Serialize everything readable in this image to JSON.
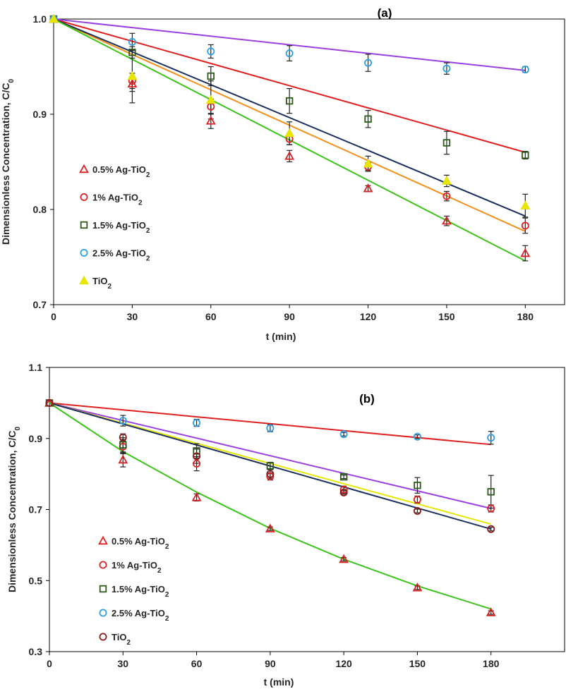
{
  "figure": {
    "panels_count": 2
  },
  "chart_data": [
    {
      "type": "scatter",
      "panel_label": "(a)",
      "xlabel": "t (min)",
      "ylabel": "Dimensionless Concentration, C/C",
      "ylabel_sub": "0",
      "xlim": [
        0,
        195
      ],
      "ylim": [
        0.7,
        1.0
      ],
      "xticks": [
        0,
        30,
        60,
        90,
        120,
        150,
        180
      ],
      "yticks": [
        0.7,
        0.8,
        0.9,
        1.0
      ],
      "ytick_labels": [
        "0.7",
        "0.8",
        "0.9",
        "1.0"
      ],
      "grid": false,
      "legend_position": "middle-left",
      "series": [
        {
          "name": "0.5% Ag-TiO",
          "sub": "2",
          "marker": "triangle",
          "color": "#e02020",
          "x": [
            0,
            30,
            60,
            90,
            120,
            150,
            180
          ],
          "values": [
            1.0,
            0.932,
            0.893,
            0.856,
            0.822,
            0.788,
            0.754
          ],
          "errors": [
            0,
            0.008,
            0.008,
            0.006,
            0.003,
            0.005,
            0.008
          ]
        },
        {
          "name": "1% Ag-TiO",
          "sub": "2",
          "marker": "circle",
          "color": "#e02020",
          "x": [
            0,
            30,
            60,
            90,
            120,
            150,
            180
          ],
          "values": [
            1.0,
            0.935,
            0.908,
            0.874,
            0.845,
            0.814,
            0.783
          ],
          "errors": [
            0,
            0.008,
            0.008,
            0.006,
            0.004,
            0.005,
            0.008
          ]
        },
        {
          "name": "1.5% Ag-TiO",
          "sub": "2",
          "marker": "square",
          "color": "#2d5a1b",
          "x": [
            0,
            30,
            60,
            90,
            120,
            150,
            180
          ],
          "values": [
            1.0,
            0.965,
            0.94,
            0.914,
            0.895,
            0.87,
            0.857
          ],
          "errors": [
            0,
            0.006,
            0.01,
            0.013,
            0.009,
            0.012,
            0.004
          ]
        },
        {
          "name": "2.5% Ag-TiO",
          "sub": "2",
          "marker": "circle",
          "color": "#2e9fe0",
          "x": [
            0,
            30,
            60,
            90,
            120,
            150,
            180
          ],
          "values": [
            1.0,
            0.976,
            0.966,
            0.964,
            0.954,
            0.948,
            0.947
          ],
          "errors": [
            0,
            0.009,
            0.007,
            0.008,
            0.009,
            0.006,
            0.003
          ]
        },
        {
          "name": "TiO",
          "sub": "2",
          "marker": "triangle",
          "color": "#e6e600",
          "x": [
            0,
            30,
            60,
            90,
            120,
            150,
            180
          ],
          "values": [
            1.0,
            0.94,
            0.915,
            0.88,
            0.848,
            0.83,
            0.804
          ],
          "errors": [
            0,
            0.028,
            0.02,
            0.012,
            0.008,
            0.006,
            0.012
          ]
        }
      ],
      "fit_lines": [
        {
          "color": "#e02020",
          "x": [
            0,
            180
          ],
          "values": [
            1.0,
            0.86
          ]
        },
        {
          "color": "#f5901e",
          "x": [
            0,
            180
          ],
          "values": [
            1.0,
            0.777
          ]
        },
        {
          "color": "#1a2f5e",
          "x": [
            0,
            180
          ],
          "values": [
            1.0,
            0.793
          ]
        },
        {
          "color": "#9b40e0",
          "x": [
            0,
            180
          ],
          "values": [
            1.0,
            0.946
          ]
        },
        {
          "color": "#3cc31c",
          "x": [
            0,
            180
          ],
          "values": [
            1.0,
            0.746
          ]
        }
      ]
    },
    {
      "type": "scatter",
      "panel_label": "(b)",
      "xlabel": "t (min)",
      "ylabel": "Dimensionless Concentration, C/C",
      "ylabel_sub": "0",
      "xlim": [
        0,
        210
      ],
      "ylim": [
        0.3,
        1.1
      ],
      "xticks": [
        0,
        30,
        60,
        90,
        120,
        150,
        180
      ],
      "yticks": [
        0.3,
        0.5,
        0.7,
        0.9,
        1.1
      ],
      "ytick_labels": [
        "0.3",
        "0.5",
        "0.7",
        "0.9",
        "1.1"
      ],
      "grid": false,
      "legend_position": "bottom-left",
      "series": [
        {
          "name": "0.5% Ag-TiO",
          "sub": "2",
          "marker": "triangle",
          "color": "#e02020",
          "x": [
            0,
            30,
            60,
            90,
            120,
            150,
            180
          ],
          "values": [
            1.0,
            0.84,
            0.734,
            0.646,
            0.56,
            0.48,
            0.41
          ],
          "errors": [
            0,
            0.02,
            0.01,
            0.005,
            0.005,
            0.005,
            0.005
          ]
        },
        {
          "name": "1% Ag-TiO",
          "sub": "2",
          "marker": "circle",
          "color": "#e02020",
          "x": [
            0,
            30,
            60,
            90,
            120,
            150,
            180
          ],
          "values": [
            1.0,
            0.877,
            0.829,
            0.793,
            0.756,
            0.728,
            0.703
          ],
          "errors": [
            0,
            0.02,
            0.02,
            0.01,
            0.01,
            0.01,
            0.01
          ]
        },
        {
          "name": "1.5% Ag-TiO",
          "sub": "2",
          "marker": "square",
          "color": "#2d5a1b",
          "x": [
            0,
            30,
            60,
            90,
            120,
            150,
            180
          ],
          "values": [
            1.0,
            0.882,
            0.865,
            0.823,
            0.792,
            0.768,
            0.75
          ],
          "errors": [
            0,
            0.02,
            0.02,
            0.01,
            0.005,
            0.022,
            0.046
          ]
        },
        {
          "name": "2.5% Ag-TiO",
          "sub": "2",
          "marker": "circle",
          "color": "#2e9fe0",
          "x": [
            0,
            30,
            60,
            90,
            120,
            150,
            180
          ],
          "values": [
            1.0,
            0.95,
            0.944,
            0.929,
            0.912,
            0.905,
            0.902
          ],
          "errors": [
            0,
            0.015,
            0.01,
            0.01,
            0.005,
            0.005,
            0.018
          ]
        },
        {
          "name": "TiO",
          "sub": "2",
          "marker": "circle",
          "color": "#8b1a1a",
          "x": [
            0,
            30,
            60,
            90,
            120,
            150,
            180
          ],
          "values": [
            1.0,
            0.903,
            0.85,
            0.8,
            0.748,
            0.696,
            0.645
          ],
          "errors": [
            0,
            0.01,
            0.02,
            0.012,
            0.005,
            0.005,
            0.005
          ]
        }
      ],
      "fit_lines": [
        {
          "color": "#e02020",
          "x": [
            0,
            180
          ],
          "values": [
            1.0,
            0.883
          ]
        },
        {
          "color": "#9b40e0",
          "x": [
            0,
            180
          ],
          "values": [
            1.0,
            0.703
          ]
        },
        {
          "color": "#e6e600",
          "x": [
            0,
            180
          ],
          "values": [
            1.0,
            0.659
          ]
        },
        {
          "color": "#1a2f5e",
          "x": [
            0,
            180
          ],
          "values": [
            1.0,
            0.645
          ]
        },
        {
          "color": "#3cc31c",
          "x": [
            0,
            30,
            60,
            90,
            120,
            150,
            180
          ],
          "values": [
            1.0,
            0.863,
            0.749,
            0.647,
            0.56,
            0.485,
            0.42
          ]
        }
      ]
    }
  ]
}
